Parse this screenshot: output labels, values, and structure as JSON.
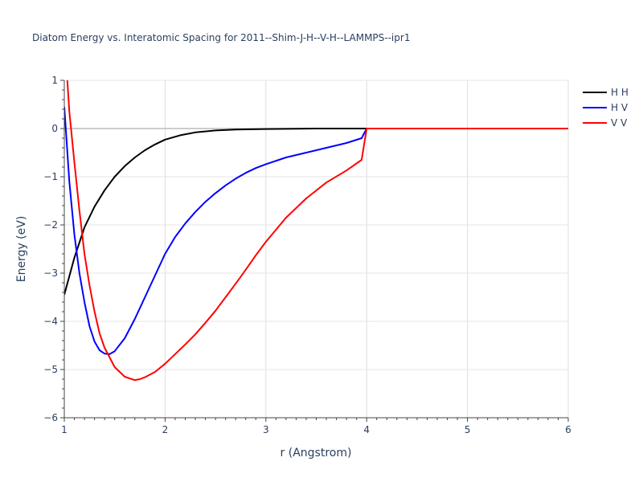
{
  "chart_data": {
    "type": "line",
    "title": "Diatom Energy vs. Interatomic Spacing for 2011--Shim-J-H--V-H--LAMMPS--ipr1",
    "xlabel": "r (Angstrom)",
    "ylabel": "Energy (eV)",
    "xlim": [
      1,
      6
    ],
    "ylim": [
      -6,
      1
    ],
    "xticks": [
      1,
      2,
      3,
      4,
      5,
      6
    ],
    "yticks": [
      1,
      0,
      -1,
      -2,
      -3,
      -4,
      -5,
      -6
    ],
    "xtick_labels": [
      "1",
      "2",
      "3",
      "4",
      "5",
      "6"
    ],
    "ytick_labels": [
      "1",
      "0",
      "−1",
      "−2",
      "−3",
      "−4",
      "−5",
      "−6"
    ],
    "grid": true,
    "legend": "top-right",
    "series": [
      {
        "name": "H H",
        "color": "#000000",
        "x": [
          1.0,
          1.1,
          1.2,
          1.3,
          1.4,
          1.5,
          1.6,
          1.7,
          1.8,
          1.9,
          2.0,
          2.15,
          2.3,
          2.5,
          2.7,
          3.0,
          3.5,
          4.0,
          4.5,
          5.0,
          6.0
        ],
        "y": [
          -3.45,
          -2.68,
          -2.05,
          -1.62,
          -1.28,
          -1.0,
          -0.78,
          -0.6,
          -0.45,
          -0.33,
          -0.23,
          -0.14,
          -0.08,
          -0.04,
          -0.02,
          -0.01,
          0.0,
          0.0,
          0.0,
          0.0,
          0.0
        ]
      },
      {
        "name": "H V",
        "color": "#0000ff",
        "x": [
          1.0,
          1.05,
          1.1,
          1.15,
          1.2,
          1.25,
          1.3,
          1.35,
          1.4,
          1.45,
          1.5,
          1.6,
          1.7,
          1.8,
          1.9,
          2.0,
          2.1,
          2.2,
          2.3,
          2.4,
          2.5,
          2.6,
          2.7,
          2.8,
          2.9,
          3.0,
          3.2,
          3.4,
          3.6,
          3.8,
          3.95,
          4.0,
          4.5,
          5.0,
          6.0
        ],
        "y": [
          0.45,
          -1.1,
          -2.2,
          -3.0,
          -3.6,
          -4.1,
          -4.42,
          -4.6,
          -4.67,
          -4.68,
          -4.62,
          -4.35,
          -3.95,
          -3.5,
          -3.05,
          -2.6,
          -2.25,
          -1.97,
          -1.73,
          -1.52,
          -1.34,
          -1.18,
          -1.04,
          -0.92,
          -0.82,
          -0.74,
          -0.6,
          -0.5,
          -0.4,
          -0.3,
          -0.2,
          0.0,
          0.0,
          0.0,
          0.0
        ]
      },
      {
        "name": "V V",
        "color": "#ff0000",
        "x": [
          1.03,
          1.05,
          1.1,
          1.15,
          1.2,
          1.25,
          1.3,
          1.35,
          1.4,
          1.5,
          1.6,
          1.7,
          1.75,
          1.8,
          1.9,
          2.0,
          2.1,
          2.2,
          2.3,
          2.4,
          2.5,
          2.6,
          2.7,
          2.8,
          2.9,
          3.0,
          3.2,
          3.4,
          3.6,
          3.8,
          3.95,
          4.0,
          4.5,
          5.0,
          6.0
        ],
        "y": [
          1.0,
          0.35,
          -0.7,
          -1.7,
          -2.6,
          -3.25,
          -3.8,
          -4.25,
          -4.55,
          -4.95,
          -5.15,
          -5.22,
          -5.2,
          -5.16,
          -5.05,
          -4.88,
          -4.68,
          -4.48,
          -4.27,
          -4.03,
          -3.78,
          -3.5,
          -3.22,
          -2.93,
          -2.63,
          -2.35,
          -1.85,
          -1.45,
          -1.12,
          -0.87,
          -0.65,
          0.0,
          0.0,
          0.0,
          0.0
        ]
      }
    ]
  }
}
